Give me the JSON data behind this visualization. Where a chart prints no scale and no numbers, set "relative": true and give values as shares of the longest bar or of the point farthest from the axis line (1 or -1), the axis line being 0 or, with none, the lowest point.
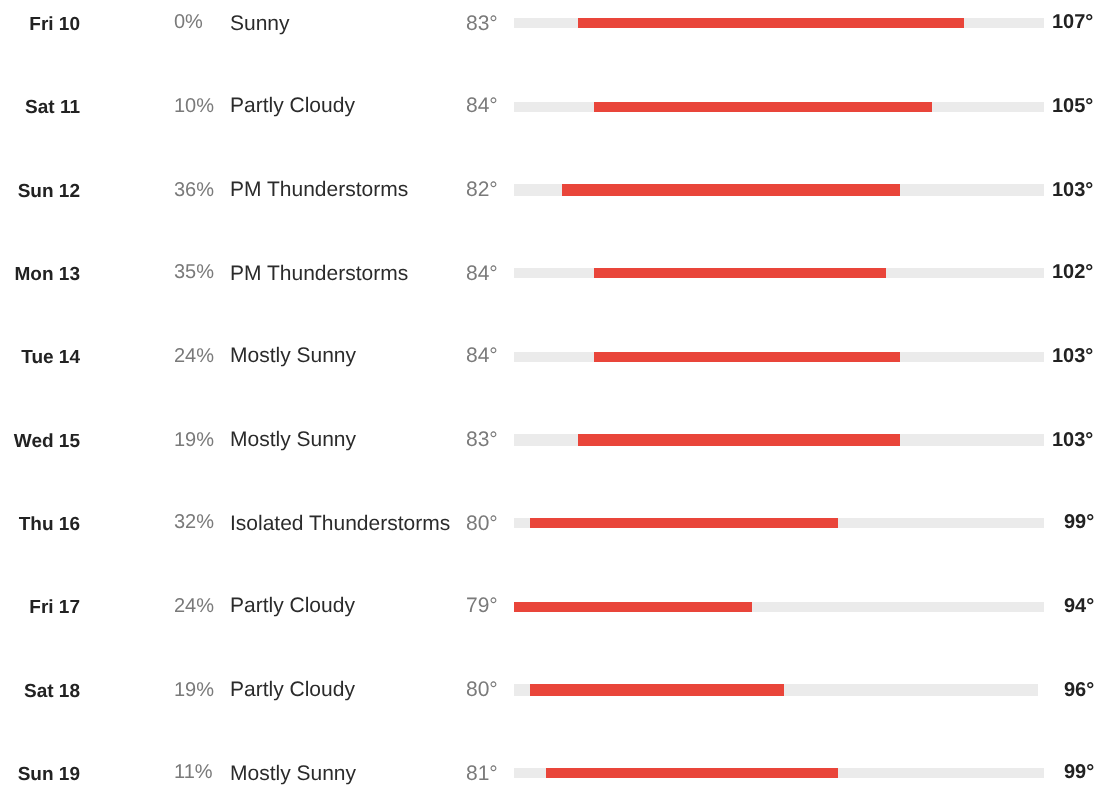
{
  "chart_data": {
    "type": "bar",
    "orientation": "horizontal",
    "stacked": true,
    "relative": true,
    "categories": [
      "Fri 10",
      "Sat 11",
      "Sun 12",
      "Mon 13",
      "Tue 14",
      "Wed 15",
      "Thu 16",
      "Fri 17",
      "Sat 18",
      "Sun 19"
    ],
    "series": [
      {
        "color": "#ebebeb",
        "values": [
          0.12,
          0.15,
          0.09,
          0.15,
          0.15,
          0.12,
          0.03,
          0,
          0.03,
          0.06
        ]
      },
      {
        "color": "#e9453a",
        "values": [
          0.73,
          0.64,
          0.64,
          0.55,
          0.58,
          0.61,
          0.58,
          0.45,
          0.48,
          0.55
        ]
      },
      {
        "color": "#ebebeb",
        "values": [
          0.15,
          0.21,
          0.27,
          0.3,
          0.27,
          0.27,
          0.39,
          0.55,
          0.48,
          0.39
        ]
      }
    ],
    "tick_labels": "y",
    "annotations": [
      "0%",
      "Sunny",
      "83°",
      "107°",
      "10%",
      "Partly Cloudy",
      "84°",
      "105°",
      "36%",
      "PM Thunderstorms",
      "82°",
      "103°",
      "35%",
      "PM Thunderstorms",
      "84°",
      "102°",
      "24%",
      "Mostly Sunny",
      "84°",
      "103°",
      "19%",
      "Mostly Sunny",
      "83°",
      "103°",
      "32%",
      "Isolated Thunderstorms",
      "80°",
      "99°",
      "24%",
      "Partly Cloudy",
      "79°",
      "94°",
      "19%",
      "Partly Cloudy",
      "80°",
      "96°",
      "11%",
      "Mostly Sunny",
      "81°",
      "99°"
    ]
  }
}
